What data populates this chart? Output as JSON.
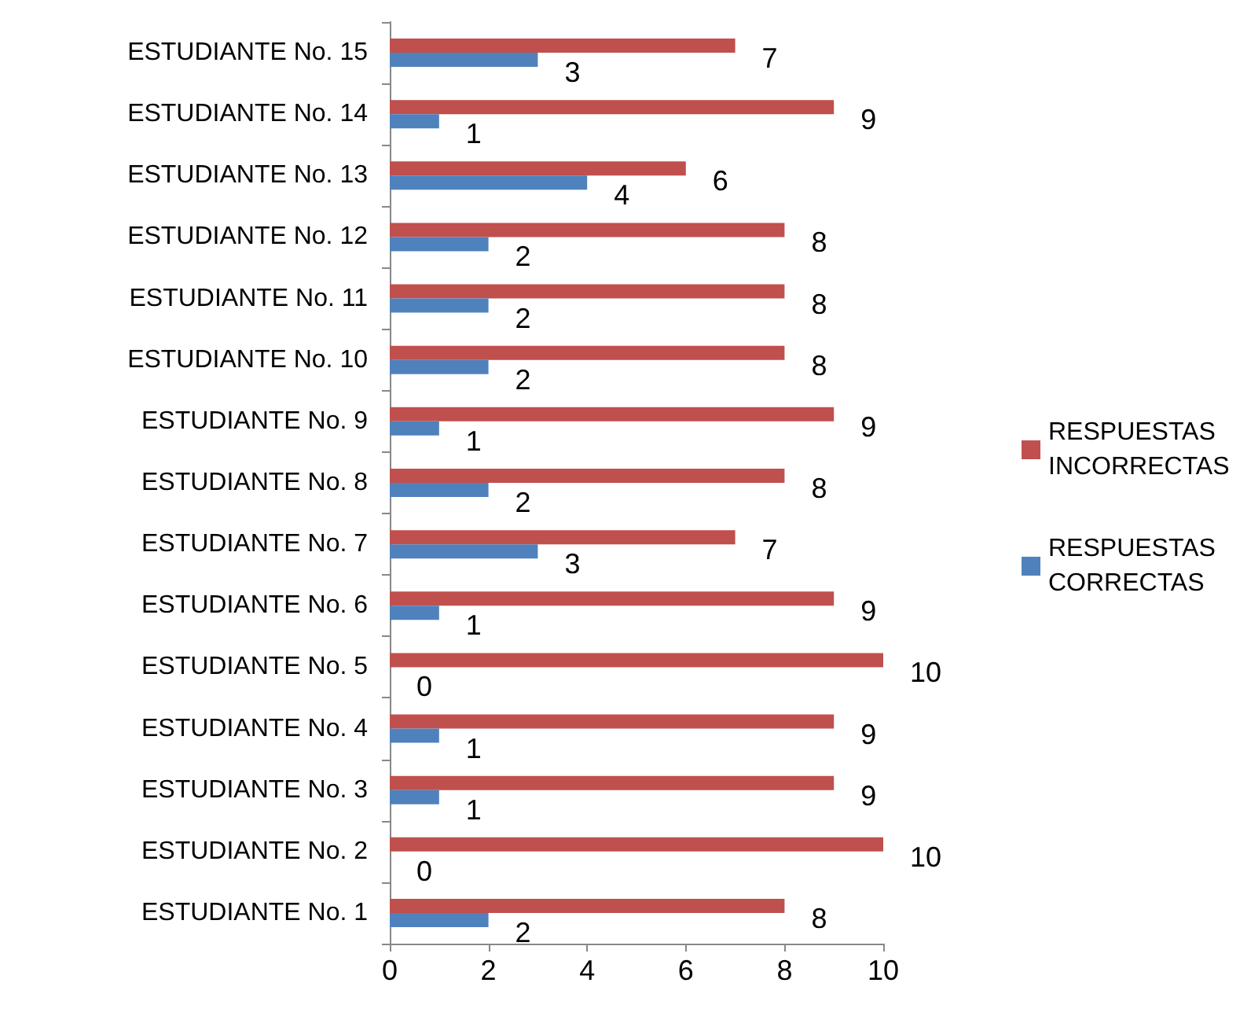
{
  "chart_data": {
    "type": "bar",
    "orientation": "horizontal",
    "categories": [
      "ESTUDIANTE No. 15",
      "ESTUDIANTE No. 14",
      "ESTUDIANTE No. 13",
      "ESTUDIANTE No. 12",
      "ESTUDIANTE No. 11",
      "ESTUDIANTE No. 10",
      "ESTUDIANTE No. 9",
      "ESTUDIANTE No. 8",
      "ESTUDIANTE No. 7",
      "ESTUDIANTE No. 6",
      "ESTUDIANTE No. 5",
      "ESTUDIANTE No. 4",
      "ESTUDIANTE No. 3",
      "ESTUDIANTE No. 2",
      "ESTUDIANTE No. 1"
    ],
    "series": [
      {
        "name": "RESPUESTAS INCORRECTAS",
        "color": "#c0504d",
        "values": [
          7,
          9,
          6,
          8,
          8,
          8,
          9,
          8,
          7,
          9,
          10,
          9,
          9,
          10,
          8
        ]
      },
      {
        "name": "RESPUESTAS CORRECTAS",
        "color": "#4f81bd",
        "values": [
          3,
          1,
          4,
          2,
          2,
          2,
          1,
          2,
          3,
          1,
          0,
          1,
          1,
          0,
          2
        ]
      }
    ],
    "xlim": [
      0,
      10
    ],
    "xticks": [
      0,
      2,
      4,
      6,
      8,
      10
    ],
    "data_labels": true,
    "grid": false,
    "legend": "right"
  }
}
